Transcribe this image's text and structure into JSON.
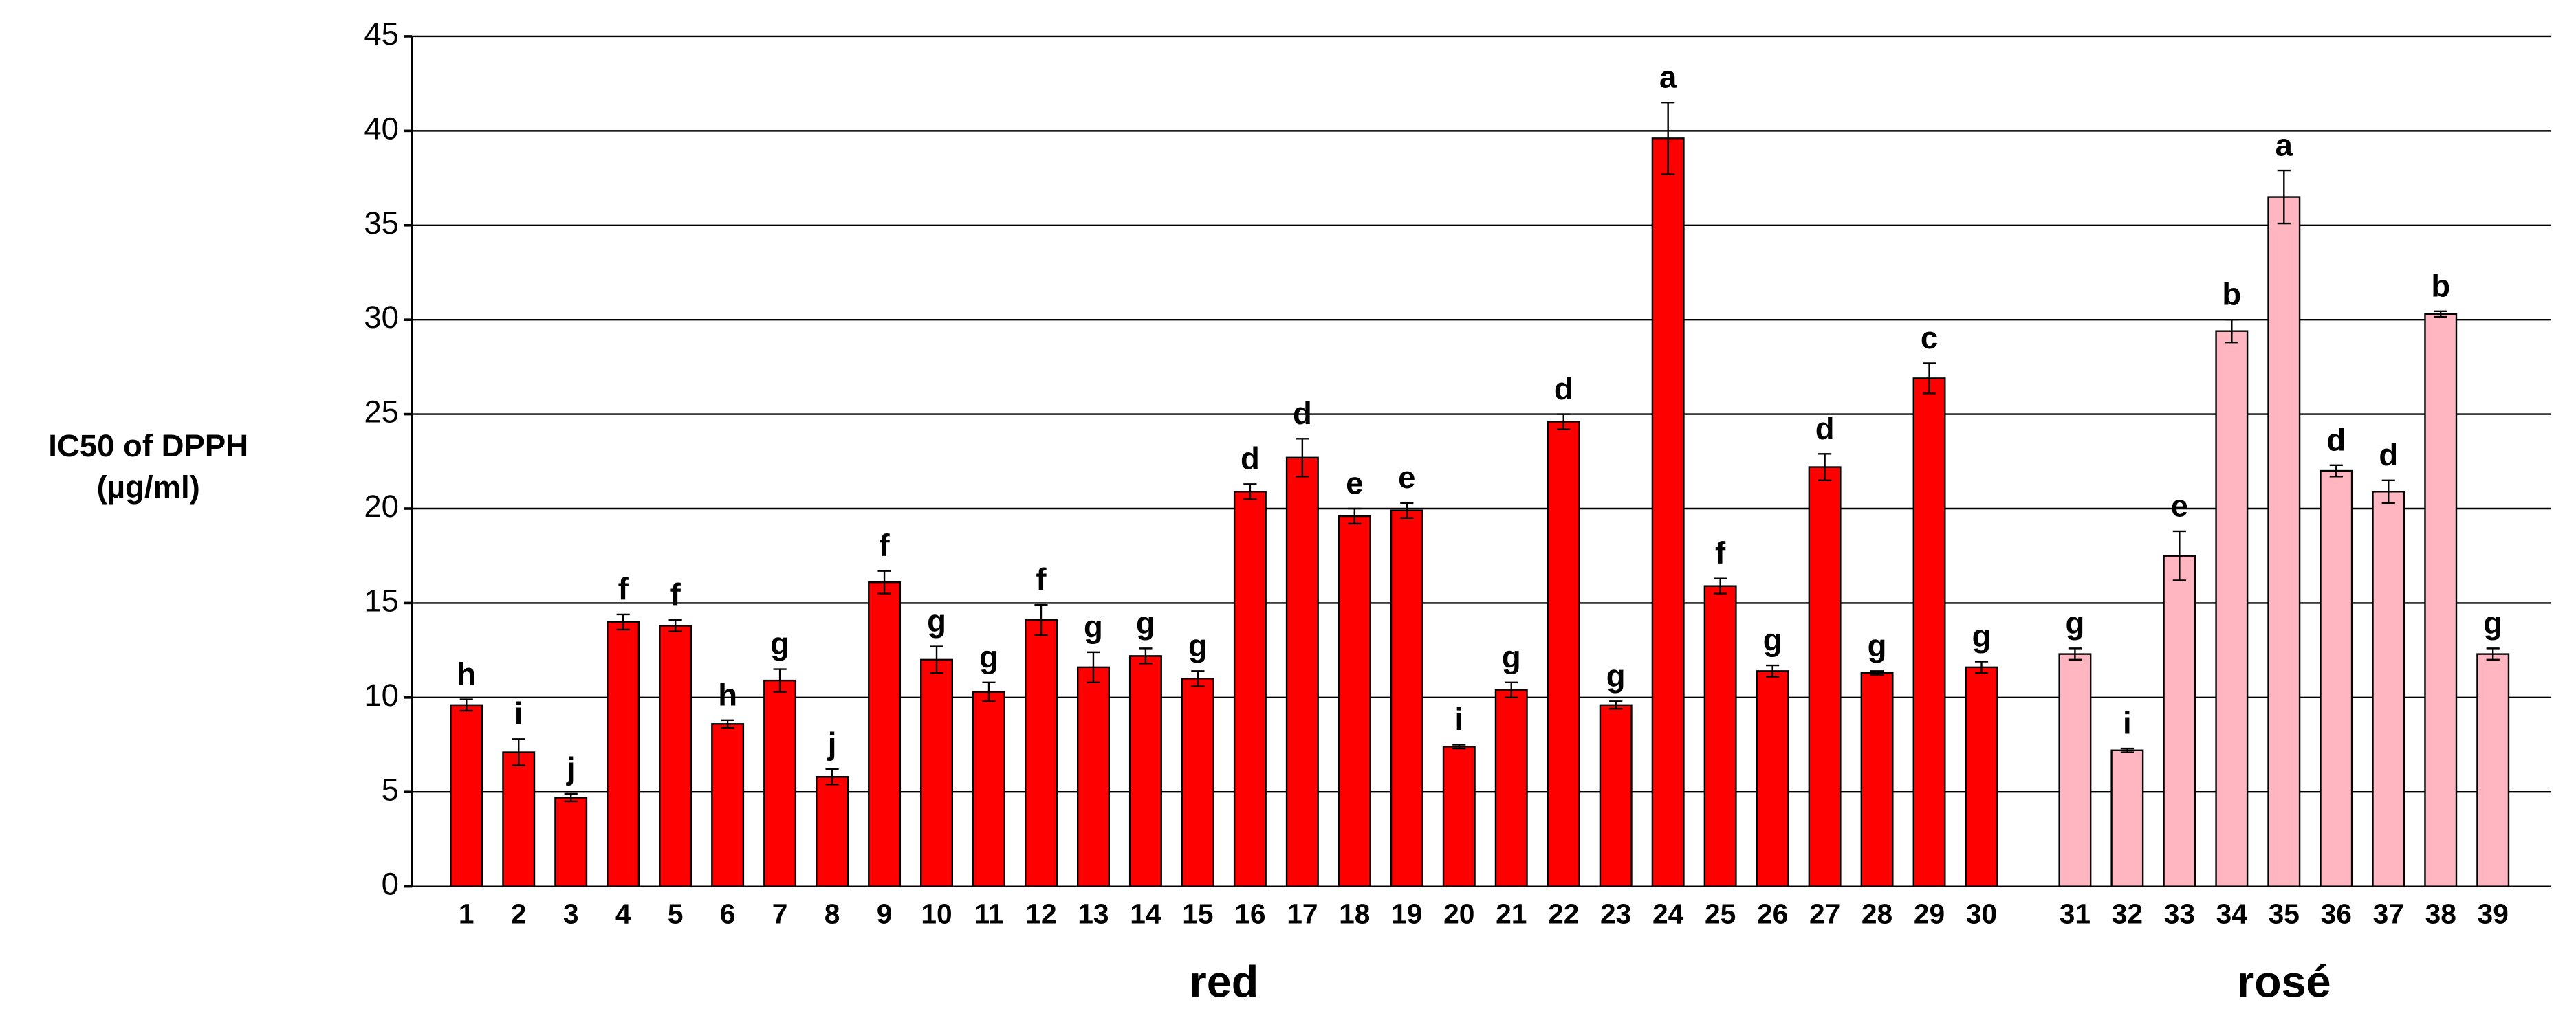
{
  "chart_data": {
    "type": "bar",
    "ylabel": [
      "IC50 of DPPH",
      "(µg/ml)"
    ],
    "categories": [
      "1",
      "2",
      "3",
      "4",
      "5",
      "6",
      "7",
      "8",
      "9",
      "10",
      "11",
      "12",
      "13",
      "14",
      "15",
      "16",
      "17",
      "18",
      "19",
      "20",
      "21",
      "22",
      "23",
      "24",
      "25",
      "26",
      "27",
      "28",
      "29",
      "30",
      "31",
      "32",
      "33",
      "34",
      "35",
      "36",
      "37",
      "38",
      "39"
    ],
    "series": [
      {
        "name": "red",
        "color": "#ff0000",
        "values": [
          9.6,
          7.1,
          4.7,
          14.0,
          13.8,
          8.6,
          10.9,
          5.8,
          16.1,
          12.0,
          10.3,
          14.1,
          11.6,
          12.2,
          11.0,
          20.9,
          22.7,
          19.6,
          19.9,
          7.4,
          10.4,
          24.6,
          9.6,
          39.6,
          15.9,
          11.4,
          22.2,
          11.3,
          26.9,
          11.6,
          null,
          null,
          null,
          null,
          null,
          null,
          null,
          null,
          null
        ],
        "errors": [
          0.3,
          0.7,
          0.2,
          0.4,
          0.3,
          0.2,
          0.6,
          0.4,
          0.6,
          0.7,
          0.5,
          0.8,
          0.8,
          0.4,
          0.4,
          0.4,
          1.0,
          0.4,
          0.4,
          0.1,
          0.4,
          0.4,
          0.2,
          1.9,
          0.4,
          0.3,
          0.7,
          0.1,
          0.8,
          0.3,
          null,
          null,
          null,
          null,
          null,
          null,
          null,
          null,
          null
        ],
        "letters": [
          "h",
          "i",
          "j",
          "f",
          "f",
          "h",
          "g",
          "j",
          "f",
          "g",
          "g",
          "f",
          "g",
          "g",
          "g",
          "d",
          "d",
          "e",
          "e",
          "i",
          "g",
          "d",
          "g",
          "a",
          "f",
          "g",
          "d",
          "g",
          "c",
          "g",
          null,
          null,
          null,
          null,
          null,
          null,
          null,
          null,
          null
        ]
      },
      {
        "name": "rosé",
        "color": "#ffb6c1",
        "values": [
          null,
          null,
          null,
          null,
          null,
          null,
          null,
          null,
          null,
          null,
          null,
          null,
          null,
          null,
          null,
          null,
          null,
          null,
          null,
          null,
          null,
          null,
          null,
          null,
          null,
          null,
          null,
          null,
          null,
          null,
          12.3,
          7.2,
          17.5,
          29.4,
          36.5,
          22.0,
          20.9,
          30.3,
          12.3
        ],
        "errors": [
          null,
          null,
          null,
          null,
          null,
          null,
          null,
          null,
          null,
          null,
          null,
          null,
          null,
          null,
          null,
          null,
          null,
          null,
          null,
          null,
          null,
          null,
          null,
          null,
          null,
          null,
          null,
          null,
          null,
          null,
          0.3,
          0.1,
          1.3,
          0.6,
          1.4,
          0.3,
          0.6,
          0.15,
          0.3
        ],
        "letters": [
          null,
          null,
          null,
          null,
          null,
          null,
          null,
          null,
          null,
          null,
          null,
          null,
          null,
          null,
          null,
          null,
          null,
          null,
          null,
          null,
          null,
          null,
          null,
          null,
          null,
          null,
          null,
          null,
          null,
          null,
          "g",
          "i",
          "e",
          "b",
          "a",
          "d",
          "d",
          "b",
          "g"
        ]
      }
    ],
    "ylim": [
      0,
      45
    ],
    "yticks": [
      0,
      5,
      10,
      15,
      20,
      25,
      30,
      35,
      40,
      45
    ],
    "grid": true
  }
}
